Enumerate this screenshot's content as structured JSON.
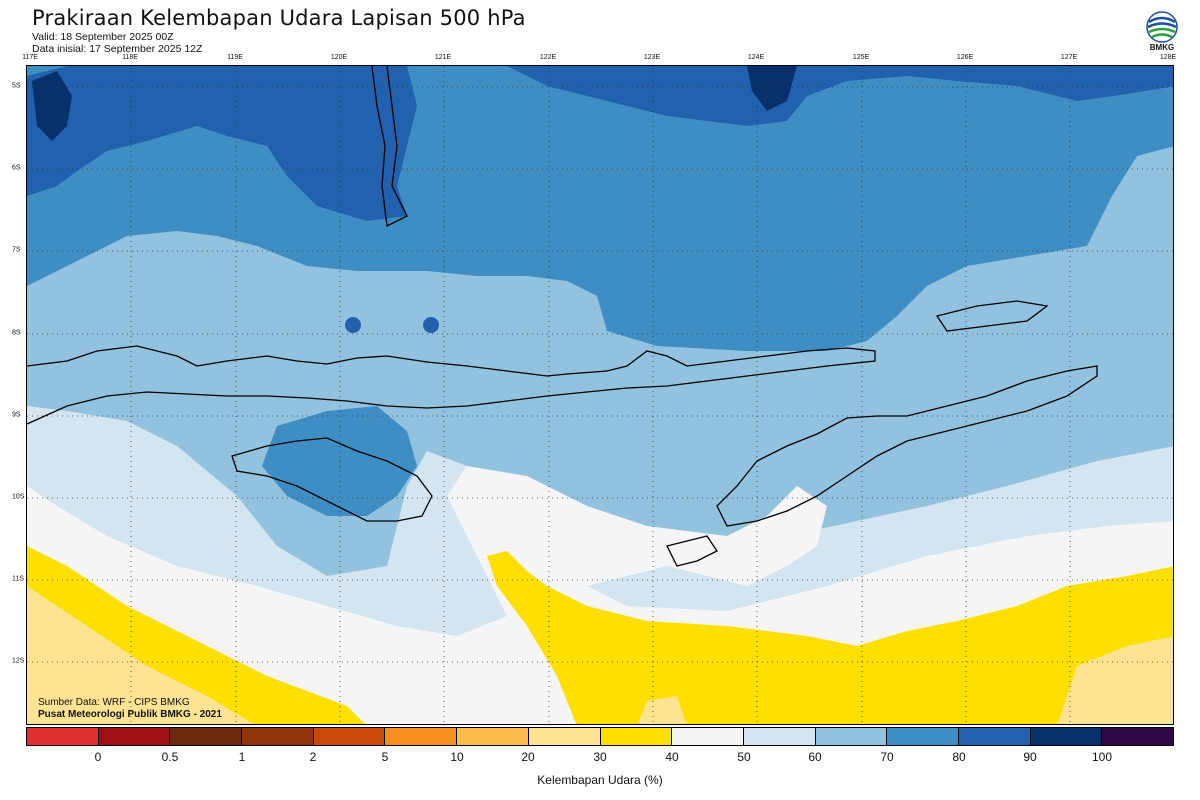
{
  "header": {
    "title": "Prakiraan Kelembapan Udara Lapisan 500 hPa",
    "valid": "Valid: 18 September 2025 00Z",
    "initial": "Data inisial: 17 September 2025 12Z"
  },
  "logo": {
    "text": "BMKG",
    "icon": "bmkg-logo-icon"
  },
  "map": {
    "lon_ticks": [
      "117E",
      "118E",
      "119E",
      "120E",
      "121E",
      "122E",
      "123E",
      "124E",
      "125E",
      "126E",
      "127E",
      "128E"
    ],
    "lat_ticks": [
      "5S",
      "6S",
      "7S",
      "8S",
      "9S",
      "10S",
      "11S",
      "12S"
    ],
    "extent": {
      "lon": [
        117,
        128
      ],
      "lat": [
        -4.6,
        -12.7
      ]
    },
    "grid": true,
    "colors": {
      "rh_90_100": "#08306b",
      "rh_80_90": "#2161ad",
      "rh_70_80": "#3f8ec3",
      "rh_60_70": "#92c2de",
      "rh_50_60": "#d2e5f1",
      "rh_40_50": "#f5f5f5",
      "rh_30_40": "#fde000",
      "rh_20_30": "#fee393"
    }
  },
  "credits": {
    "source": "Sumber Data: WRF - CIPS BMKG",
    "org": "Pusat Meteorologi Publik BMKG - 2021"
  },
  "colorbar": {
    "title": "Kelembapan Udara (%)",
    "labels": [
      "0",
      "0.5",
      "1",
      "2",
      "5",
      "10",
      "20",
      "30",
      "40",
      "50",
      "60",
      "70",
      "80",
      "90",
      "100"
    ],
    "colors": [
      "#e03030",
      "#a00f14",
      "#6b2a10",
      "#913309",
      "#c94a06",
      "#f5901e",
      "#fcbc4a",
      "#fee393",
      "#fde000",
      "#f5f5f5",
      "#d2e5f1",
      "#92c2de",
      "#3f8ec3",
      "#2161ad",
      "#08306b",
      "#2e0a45"
    ]
  }
}
